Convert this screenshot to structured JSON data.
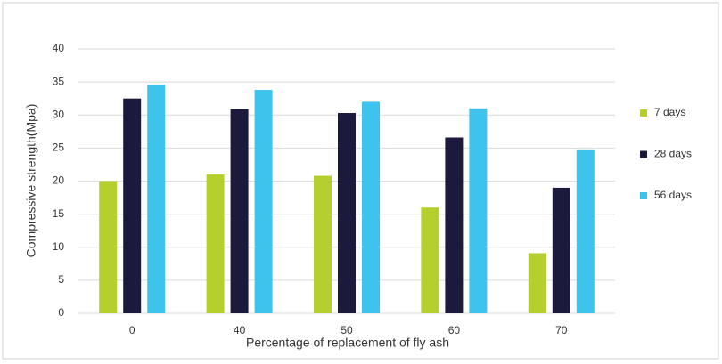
{
  "chart_data": {
    "type": "bar",
    "y_label": "Compressive strength(Mpa)",
    "x_label": "Percentage of replacement of fly ash",
    "categories": [
      "0",
      "40",
      "50",
      "60",
      "70"
    ],
    "series": [
      {
        "name": "7 days",
        "color": "#b5cf2e",
        "values": [
          20,
          21,
          20.8,
          16,
          9.1
        ]
      },
      {
        "name": "28 days",
        "color": "#1c1a3c",
        "values": [
          32.5,
          30.9,
          30.3,
          26.6,
          19
        ]
      },
      {
        "name": "56 days",
        "color": "#3ec3ec",
        "values": [
          34.6,
          33.8,
          32,
          31,
          24.8
        ]
      }
    ],
    "ylim": [
      0,
      40
    ],
    "yticks": [
      0,
      5,
      10,
      15,
      20,
      25,
      30,
      35,
      40
    ],
    "grid": true,
    "legend": "right"
  }
}
